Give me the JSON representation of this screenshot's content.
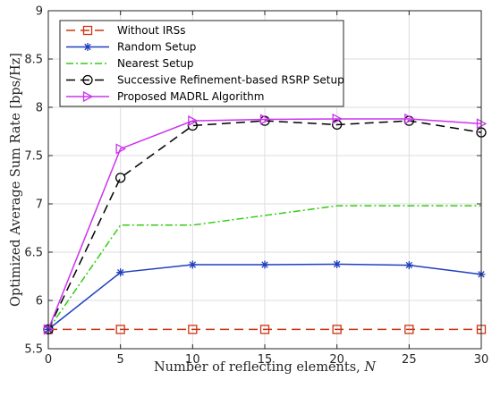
{
  "chart_data": {
    "type": "line",
    "xlabel": "Number of reflecting elements, ",
    "xlabel_var": "N",
    "ylabel": "Optimized Average Sum Rate [bps/Hz]",
    "xlim": [
      0,
      30
    ],
    "ylim": [
      5.5,
      9
    ],
    "xticks": [
      0,
      5,
      10,
      15,
      20,
      25,
      30
    ],
    "yticks": [
      5.5,
      6,
      6.5,
      7,
      7.5,
      8,
      8.5,
      9
    ],
    "grid": true,
    "legend_position": "top-left",
    "series": [
      {
        "name": "Without IRSs",
        "color": "#cc3311",
        "dash": "10,6",
        "marker": "square",
        "x": [
          0,
          5,
          10,
          15,
          20,
          25,
          30
        ],
        "y": [
          5.7,
          5.7,
          5.7,
          5.7,
          5.7,
          5.7,
          5.7
        ]
      },
      {
        "name": "Random Setup",
        "color": "#1f3fbf",
        "dash": "",
        "marker": "asterisk",
        "x": [
          0,
          5,
          10,
          15,
          20,
          25,
          30
        ],
        "y": [
          5.7,
          6.29,
          6.37,
          6.37,
          6.375,
          6.365,
          6.27
        ]
      },
      {
        "name": "Nearest Setup",
        "color": "#33cc11",
        "dash": "8,3,2,3",
        "marker": "none",
        "x": [
          0,
          5,
          10,
          15,
          20,
          25,
          30
        ],
        "y": [
          5.7,
          6.78,
          6.78,
          6.88,
          6.98,
          6.98,
          6.98
        ]
      },
      {
        "name": "Successive Refinement-based RSRP Setup",
        "color": "#000000",
        "dash": "10,6",
        "marker": "circle",
        "x": [
          0,
          5,
          10,
          15,
          20,
          25,
          30
        ],
        "y": [
          5.7,
          7.27,
          7.81,
          7.86,
          7.82,
          7.86,
          7.74
        ]
      },
      {
        "name": "Proposed MADRL Algorithm",
        "color": "#cc33ee",
        "dash": "",
        "marker": "triangle-right",
        "x": [
          0,
          5,
          10,
          15,
          20,
          25,
          30
        ],
        "y": [
          5.7,
          7.57,
          7.86,
          7.875,
          7.88,
          7.88,
          7.83
        ]
      }
    ]
  }
}
